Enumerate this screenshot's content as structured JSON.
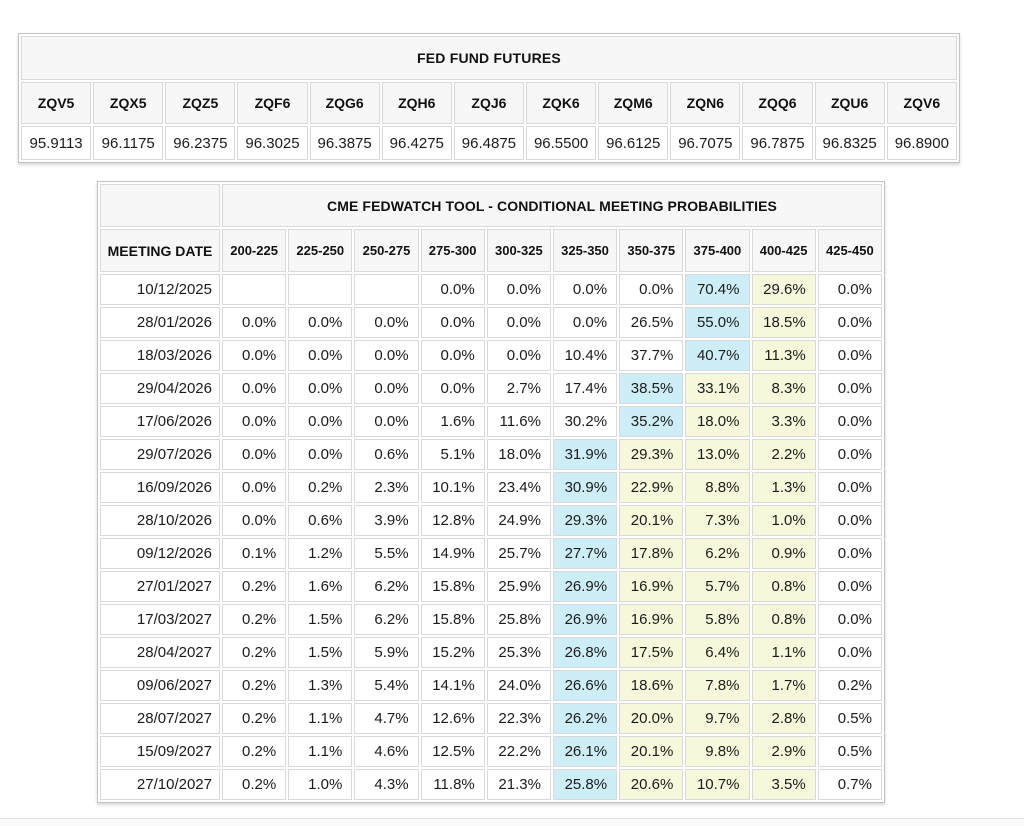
{
  "futures_table": {
    "title": "FED FUND FUTURES",
    "contracts": [
      "ZQV5",
      "ZQX5",
      "ZQZ5",
      "ZQF6",
      "ZQG6",
      "ZQH6",
      "ZQJ6",
      "ZQK6",
      "ZQM6",
      "ZQN6",
      "ZQQ6",
      "ZQU6",
      "ZQV6"
    ],
    "prices": [
      "95.9113",
      "96.1175",
      "96.2375",
      "96.3025",
      "96.3875",
      "96.4275",
      "96.4875",
      "96.5500",
      "96.6125",
      "96.7075",
      "96.7875",
      "96.8325",
      "96.8900"
    ]
  },
  "fedwatch_table": {
    "title": "CME FEDWATCH TOOL - CONDITIONAL MEETING PROBABILITIES",
    "date_header": "MEETING DATE",
    "rate_headers": [
      "200-225",
      "225-250",
      "250-275",
      "275-300",
      "300-325",
      "325-350",
      "350-375",
      "375-400",
      "400-425",
      "425-450"
    ],
    "colors": {
      "highlight_blue": "#cdeef7",
      "highlight_yellow": "#f7f7db"
    },
    "rows": [
      {
        "date": "10/12/2025",
        "values": [
          "",
          "",
          "",
          "0.0%",
          "0.0%",
          "0.0%",
          "0.0%",
          "70.4%",
          "29.6%",
          "0.0%"
        ],
        "styles": [
          "",
          "",
          "",
          "",
          "",
          "",
          "",
          "b",
          "y",
          ""
        ]
      },
      {
        "date": "28/01/2026",
        "values": [
          "0.0%",
          "0.0%",
          "0.0%",
          "0.0%",
          "0.0%",
          "0.0%",
          "26.5%",
          "55.0%",
          "18.5%",
          "0.0%"
        ],
        "styles": [
          "",
          "",
          "",
          "",
          "",
          "",
          "",
          "b",
          "y",
          ""
        ]
      },
      {
        "date": "18/03/2026",
        "values": [
          "0.0%",
          "0.0%",
          "0.0%",
          "0.0%",
          "0.0%",
          "10.4%",
          "37.7%",
          "40.7%",
          "11.3%",
          "0.0%"
        ],
        "styles": [
          "",
          "",
          "",
          "",
          "",
          "",
          "",
          "b",
          "y",
          ""
        ]
      },
      {
        "date": "29/04/2026",
        "values": [
          "0.0%",
          "0.0%",
          "0.0%",
          "0.0%",
          "2.7%",
          "17.4%",
          "38.5%",
          "33.1%",
          "8.3%",
          "0.0%"
        ],
        "styles": [
          "",
          "",
          "",
          "",
          "",
          "",
          "b",
          "y",
          "y",
          ""
        ]
      },
      {
        "date": "17/06/2026",
        "values": [
          "0.0%",
          "0.0%",
          "0.0%",
          "1.6%",
          "11.6%",
          "30.2%",
          "35.2%",
          "18.0%",
          "3.3%",
          "0.0%"
        ],
        "styles": [
          "",
          "",
          "",
          "",
          "",
          "",
          "b",
          "y",
          "y",
          ""
        ]
      },
      {
        "date": "29/07/2026",
        "values": [
          "0.0%",
          "0.0%",
          "0.6%",
          "5.1%",
          "18.0%",
          "31.9%",
          "29.3%",
          "13.0%",
          "2.2%",
          "0.0%"
        ],
        "styles": [
          "",
          "",
          "",
          "",
          "",
          "b",
          "y",
          "y",
          "y",
          ""
        ]
      },
      {
        "date": "16/09/2026",
        "values": [
          "0.0%",
          "0.2%",
          "2.3%",
          "10.1%",
          "23.4%",
          "30.9%",
          "22.9%",
          "8.8%",
          "1.3%",
          "0.0%"
        ],
        "styles": [
          "",
          "",
          "",
          "",
          "",
          "b",
          "y",
          "y",
          "y",
          ""
        ]
      },
      {
        "date": "28/10/2026",
        "values": [
          "0.0%",
          "0.6%",
          "3.9%",
          "12.8%",
          "24.9%",
          "29.3%",
          "20.1%",
          "7.3%",
          "1.0%",
          "0.0%"
        ],
        "styles": [
          "",
          "",
          "",
          "",
          "",
          "b",
          "y",
          "y",
          "y",
          ""
        ]
      },
      {
        "date": "09/12/2026",
        "values": [
          "0.1%",
          "1.2%",
          "5.5%",
          "14.9%",
          "25.7%",
          "27.7%",
          "17.8%",
          "6.2%",
          "0.9%",
          "0.0%"
        ],
        "styles": [
          "",
          "",
          "",
          "",
          "",
          "b",
          "y",
          "y",
          "y",
          ""
        ]
      },
      {
        "date": "27/01/2027",
        "values": [
          "0.2%",
          "1.6%",
          "6.2%",
          "15.8%",
          "25.9%",
          "26.9%",
          "16.9%",
          "5.7%",
          "0.8%",
          "0.0%"
        ],
        "styles": [
          "",
          "",
          "",
          "",
          "",
          "b",
          "y",
          "y",
          "y",
          ""
        ]
      },
      {
        "date": "17/03/2027",
        "values": [
          "0.2%",
          "1.5%",
          "6.2%",
          "15.8%",
          "25.8%",
          "26.9%",
          "16.9%",
          "5.8%",
          "0.8%",
          "0.0%"
        ],
        "styles": [
          "",
          "",
          "",
          "",
          "",
          "b",
          "y",
          "y",
          "y",
          ""
        ]
      },
      {
        "date": "28/04/2027",
        "values": [
          "0.2%",
          "1.5%",
          "5.9%",
          "15.2%",
          "25.3%",
          "26.8%",
          "17.5%",
          "6.4%",
          "1.1%",
          "0.0%"
        ],
        "styles": [
          "",
          "",
          "",
          "",
          "",
          "b",
          "y",
          "y",
          "y",
          ""
        ]
      },
      {
        "date": "09/06/2027",
        "values": [
          "0.2%",
          "1.3%",
          "5.4%",
          "14.1%",
          "24.0%",
          "26.6%",
          "18.6%",
          "7.8%",
          "1.7%",
          "0.2%"
        ],
        "styles": [
          "",
          "",
          "",
          "",
          "",
          "b",
          "y",
          "y",
          "y",
          ""
        ]
      },
      {
        "date": "28/07/2027",
        "values": [
          "0.2%",
          "1.1%",
          "4.7%",
          "12.6%",
          "22.3%",
          "26.2%",
          "20.0%",
          "9.7%",
          "2.8%",
          "0.5%"
        ],
        "styles": [
          "",
          "",
          "",
          "",
          "",
          "b",
          "y",
          "y",
          "y",
          ""
        ]
      },
      {
        "date": "15/09/2027",
        "values": [
          "0.2%",
          "1.1%",
          "4.6%",
          "12.5%",
          "22.2%",
          "26.1%",
          "20.1%",
          "9.8%",
          "2.9%",
          "0.5%"
        ],
        "styles": [
          "",
          "",
          "",
          "",
          "",
          "b",
          "y",
          "y",
          "y",
          ""
        ]
      },
      {
        "date": "27/10/2027",
        "values": [
          "0.2%",
          "1.0%",
          "4.3%",
          "11.8%",
          "21.3%",
          "25.8%",
          "20.6%",
          "10.7%",
          "3.5%",
          "0.7%"
        ],
        "styles": [
          "",
          "",
          "",
          "",
          "",
          "b",
          "y",
          "y",
          "y",
          ""
        ]
      }
    ]
  }
}
